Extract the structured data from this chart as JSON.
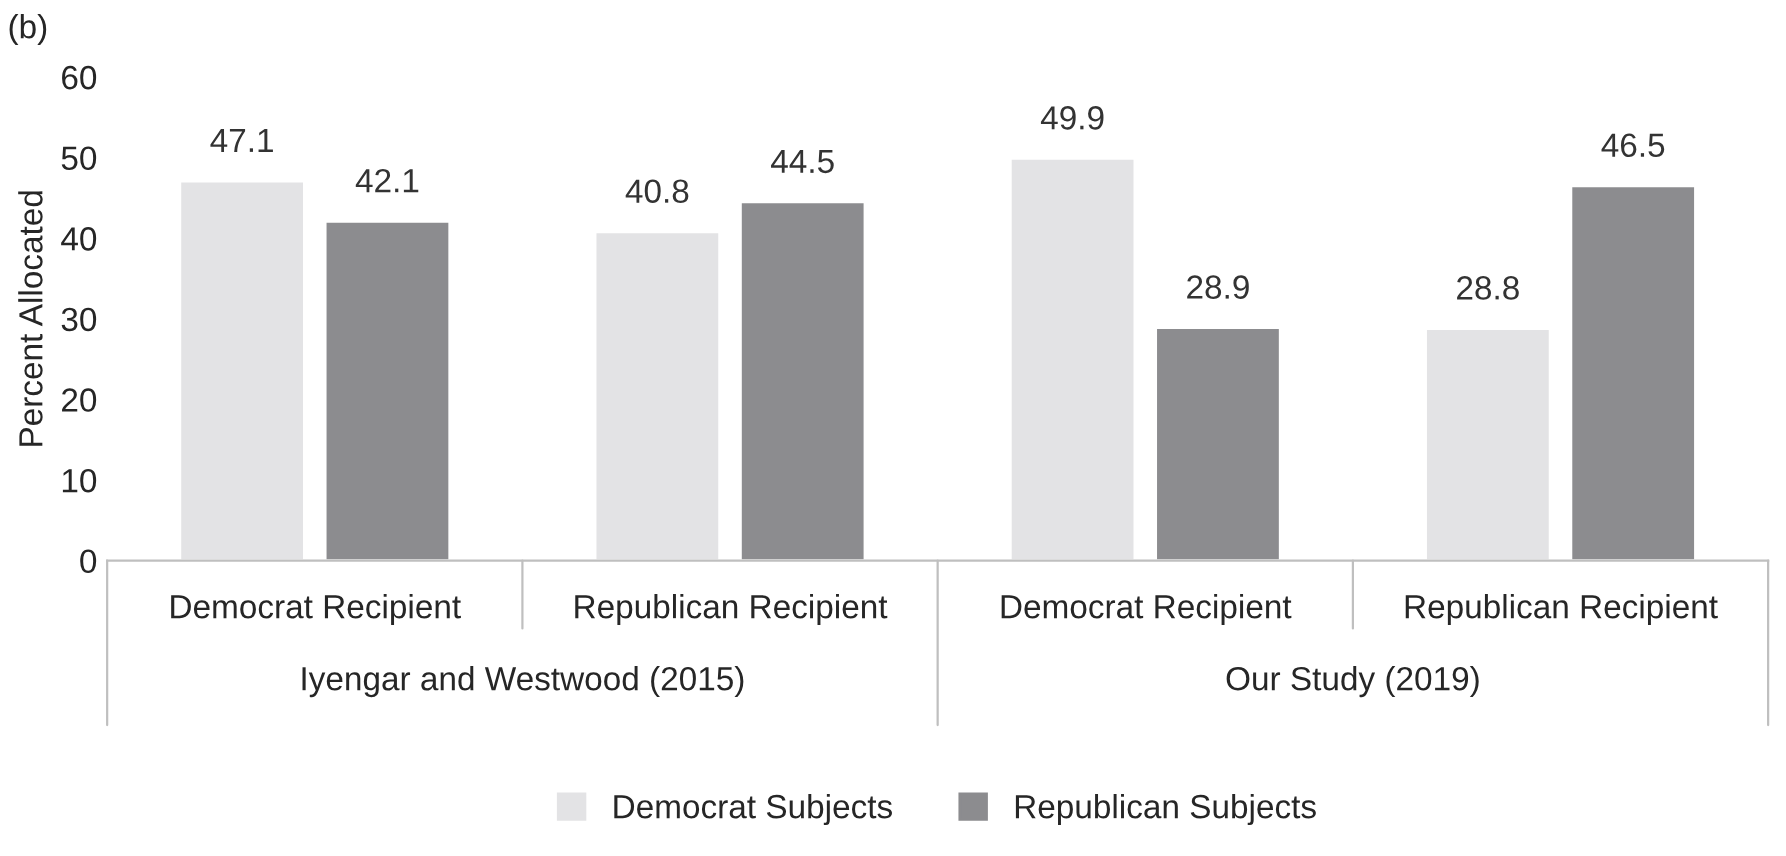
{
  "chart_data": {
    "type": "bar",
    "title": "(b)",
    "ylabel": "Percent Allocated",
    "categories": [
      "Democrat Recipient",
      "Republican Recipient",
      "Democrat Recipient",
      "Republican Recipient"
    ],
    "series": [
      {
        "name": "Democrat Subjects",
        "color": "#e3e3e5",
        "values": [
          47.1,
          40.8,
          49.9,
          28.8
        ]
      },
      {
        "name": "Republican Subjects",
        "color": "#8c8c8f",
        "values": [
          42.1,
          44.5,
          28.9,
          46.5
        ]
      }
    ],
    "ylim": [
      0,
      60
    ],
    "yticks": [
      0,
      10,
      20,
      30,
      40,
      50,
      60
    ],
    "annotations": [
      "Iyengar and Westwood (2015)",
      "Our Study (2019)"
    ],
    "data_labels": true,
    "legend": "bottom",
    "grid": false
  }
}
